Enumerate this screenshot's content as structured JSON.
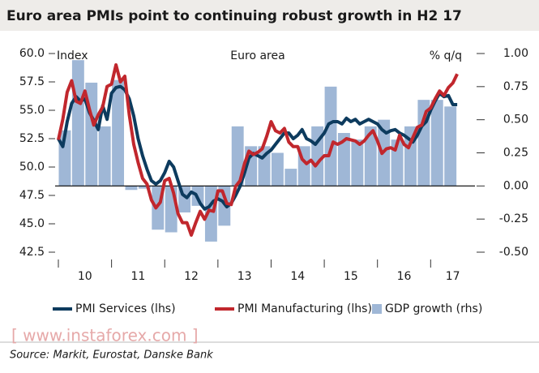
{
  "chart_data": {
    "type": "combo",
    "title": "Euro area PMIs point to continuing robust growth in H2 17",
    "annotations": [
      "Index",
      "Euro area",
      "% q/q"
    ],
    "source": "Source: Markit, Eurostat, Danske Bank",
    "watermark": "[ www.instaforex.com ]",
    "xlim": [
      0,
      94
    ],
    "xticks": [
      0,
      12,
      24,
      36,
      48,
      60,
      72,
      84
    ],
    "xtick_labels": [
      {
        "value": 6,
        "label": "10"
      },
      {
        "value": 18,
        "label": "11"
      },
      {
        "value": 30,
        "label": "12"
      },
      {
        "value": 42,
        "label": "13"
      },
      {
        "value": 54,
        "label": "14"
      },
      {
        "value": 66,
        "label": "15"
      },
      {
        "value": 78,
        "label": "16"
      },
      {
        "value": 89,
        "label": "17"
      }
    ],
    "ylim": [
      42.5,
      60
    ],
    "yticks": [
      {
        "value": 42.5,
        "label": "42.5"
      },
      {
        "value": 45,
        "label": "45.0"
      },
      {
        "value": 47.5,
        "label": "47.5"
      },
      {
        "value": 50,
        "label": "50.0"
      },
      {
        "value": 52.5,
        "label": "52.5"
      },
      {
        "value": 55,
        "label": "55.0"
      },
      {
        "value": 57.5,
        "label": "57.5"
      },
      {
        "value": 60,
        "label": "60.0"
      }
    ],
    "y2lim": [
      -0.5,
      1
    ],
    "y2ticks": [
      {
        "value": -0.5,
        "label": "-0.50"
      },
      {
        "value": -0.25,
        "label": "-0.25"
      },
      {
        "value": 0,
        "label": "0.00"
      },
      {
        "value": 0.25,
        "label": "0.25"
      },
      {
        "value": 0.5,
        "label": "0.50"
      },
      {
        "value": 0.75,
        "label": "0.75"
      },
      {
        "value": 1,
        "label": "1.00"
      }
    ],
    "series": [
      {
        "name": "GDP growth (rhs)",
        "type": "bar",
        "axis": "y2",
        "color": "#9fb7d6",
        "x": [
          0,
          3,
          6,
          9,
          12,
          15,
          18,
          21,
          24,
          27,
          30,
          33,
          36,
          39,
          42,
          45,
          48,
          51,
          54,
          57,
          60,
          63,
          66,
          69,
          72,
          75,
          78,
          81,
          84,
          87
        ],
        "values": [
          0.42,
          0.95,
          0.78,
          0.45,
          0.8,
          -0.03,
          -0.02,
          -0.33,
          -0.35,
          -0.2,
          -0.15,
          -0.42,
          -0.3,
          0.45,
          0.3,
          0.3,
          0.25,
          0.13,
          0.3,
          0.45,
          0.75,
          0.4,
          0.35,
          0.45,
          0.5,
          0.35,
          0.45,
          0.65,
          0.65,
          0.6
        ]
      },
      {
        "name": "PMI Services (lhs)",
        "type": "line",
        "color": "#0d3b5e",
        "x": [
          0,
          1,
          2,
          3,
          4,
          5,
          6,
          7,
          8,
          9,
          10,
          11,
          12,
          13,
          14,
          15,
          16,
          17,
          18,
          19,
          20,
          21,
          22,
          23,
          24,
          25,
          26,
          27,
          28,
          29,
          30,
          31,
          32,
          33,
          34,
          35,
          36,
          37,
          38,
          39,
          40,
          41,
          42,
          43,
          44,
          45,
          46,
          47,
          48,
          49,
          50,
          51,
          52,
          53,
          54,
          55,
          56,
          57,
          58,
          59,
          60,
          61,
          62,
          63,
          64,
          65,
          66,
          67,
          68,
          69,
          70,
          71,
          72,
          73,
          74,
          75,
          76,
          77,
          78,
          79,
          80,
          81,
          82,
          83,
          84,
          85,
          86,
          87,
          88,
          89,
          90
        ],
        "values": [
          52.5,
          51.8,
          54.0,
          55.6,
          56.2,
          55.8,
          56.0,
          54.8,
          54.1,
          53.3,
          55.4,
          54.2,
          56.5,
          57.0,
          57.1,
          56.8,
          56.0,
          54.5,
          52.5,
          51.0,
          49.8,
          48.8,
          48.5,
          48.8,
          49.5,
          50.5,
          50.0,
          48.8,
          47.6,
          47.3,
          47.8,
          47.6,
          46.8,
          46.3,
          46.5,
          47.0,
          47.2,
          47.0,
          46.5,
          46.8,
          47.5,
          48.3,
          49.5,
          50.8,
          51.2,
          51.0,
          50.8,
          51.2,
          51.5,
          52.0,
          52.5,
          53.0,
          53.0,
          52.5,
          52.8,
          53.3,
          52.5,
          52.3,
          52.0,
          52.5,
          53.0,
          53.8,
          54.0,
          54.0,
          53.8,
          54.3,
          54.0,
          54.2,
          53.8,
          54.0,
          54.2,
          54.0,
          53.8,
          53.3,
          53.0,
          53.2,
          53.3,
          53.0,
          52.8,
          52.5,
          52.2,
          52.8,
          53.6,
          54.0,
          55.0,
          55.8,
          56.5,
          56.2,
          56.3,
          55.5,
          55.5
        ]
      },
      {
        "name": "PMI Manufacturing (lhs)",
        "type": "line",
        "color": "#c1272d",
        "x": [
          0,
          1,
          2,
          3,
          4,
          5,
          6,
          7,
          8,
          9,
          10,
          11,
          12,
          13,
          14,
          15,
          16,
          17,
          18,
          19,
          20,
          21,
          22,
          23,
          24,
          25,
          26,
          27,
          28,
          29,
          30,
          31,
          32,
          33,
          34,
          35,
          36,
          37,
          38,
          39,
          40,
          41,
          42,
          43,
          44,
          45,
          46,
          47,
          48,
          49,
          50,
          51,
          52,
          53,
          54,
          55,
          56,
          57,
          58,
          59,
          60,
          61,
          62,
          63,
          64,
          65,
          66,
          67,
          68,
          69,
          70,
          71,
          72,
          73,
          74,
          75,
          76,
          77,
          78,
          79,
          80,
          81,
          82,
          83,
          84,
          85,
          86,
          87,
          88,
          89,
          90
        ],
        "values": [
          52.4,
          54.2,
          56.6,
          57.6,
          55.8,
          55.6,
          56.7,
          55.1,
          53.7,
          54.6,
          55.3,
          57.1,
          57.3,
          59.0,
          57.5,
          58.0,
          54.6,
          52.0,
          50.4,
          49.0,
          48.5,
          47.1,
          46.4,
          46.9,
          48.8,
          49.0,
          47.7,
          45.9,
          45.1,
          45.1,
          44.0,
          45.1,
          46.1,
          45.4,
          46.2,
          46.1,
          47.9,
          47.9,
          46.8,
          46.7,
          48.3,
          48.8,
          50.3,
          51.4,
          51.1,
          51.3,
          51.6,
          52.7,
          54.0,
          53.2,
          53.0,
          53.4,
          52.2,
          51.8,
          51.8,
          50.7,
          50.3,
          50.6,
          50.1,
          50.6,
          51.0,
          51.0,
          52.2,
          52.0,
          52.2,
          52.5,
          52.4,
          52.3,
          52.0,
          52.3,
          52.8,
          53.2,
          52.3,
          51.2,
          51.6,
          51.7,
          51.5,
          52.8,
          52.0,
          51.7,
          52.6,
          53.5,
          53.7,
          54.9,
          55.2,
          56.0,
          56.7,
          56.3,
          57.0,
          57.4,
          58.2
        ]
      }
    ],
    "legend_order": [
      1,
      2,
      0
    ]
  }
}
